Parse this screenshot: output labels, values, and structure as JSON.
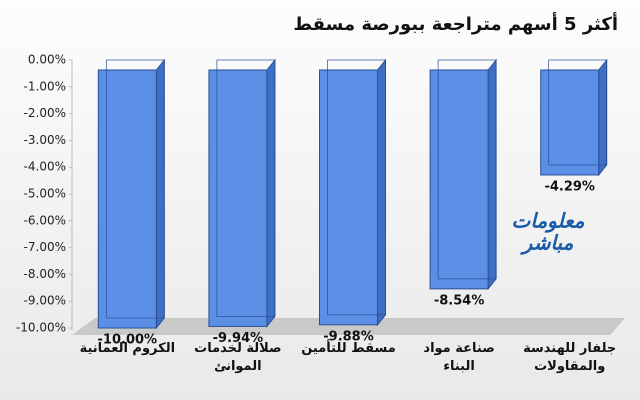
{
  "chart_data": {
    "type": "bar",
    "title": "أكثر 5 أسهم متراجعة ببورصة مسقط",
    "categories": [
      "الكروم العمانية",
      "صلالة لخدمات الموانئ",
      "مسقط للتأمين",
      "صناعة مواد البناء",
      "جلفار للهندسة والمقاولات"
    ],
    "values": [
      -10.0,
      -9.94,
      -9.88,
      -8.54,
      -4.29
    ],
    "value_labels": [
      "-10.00%",
      "-9.94%",
      "-9.88%",
      "-8.54%",
      "-4.29%"
    ],
    "color": "#5b8fe6",
    "ylim": [
      -10,
      0
    ],
    "yticks": [
      {
        "value": 0,
        "label": "0.00%"
      },
      {
        "value": -1,
        "label": "-1.00%"
      },
      {
        "value": -2,
        "label": "-2.00%"
      },
      {
        "value": -3,
        "label": "-3.00%"
      },
      {
        "value": -4,
        "label": "-4.00%"
      },
      {
        "value": -5,
        "label": "-5.00%"
      },
      {
        "value": -6,
        "label": "-6.00%"
      },
      {
        "value": -7,
        "label": "-7.00%"
      },
      {
        "value": -8,
        "label": "-8.00%"
      },
      {
        "value": -9,
        "label": "-9.00%"
      },
      {
        "value": -10,
        "label": "-10.00%"
      }
    ],
    "grid": false,
    "watermark": [
      "معلومات",
      "مباشر"
    ]
  }
}
